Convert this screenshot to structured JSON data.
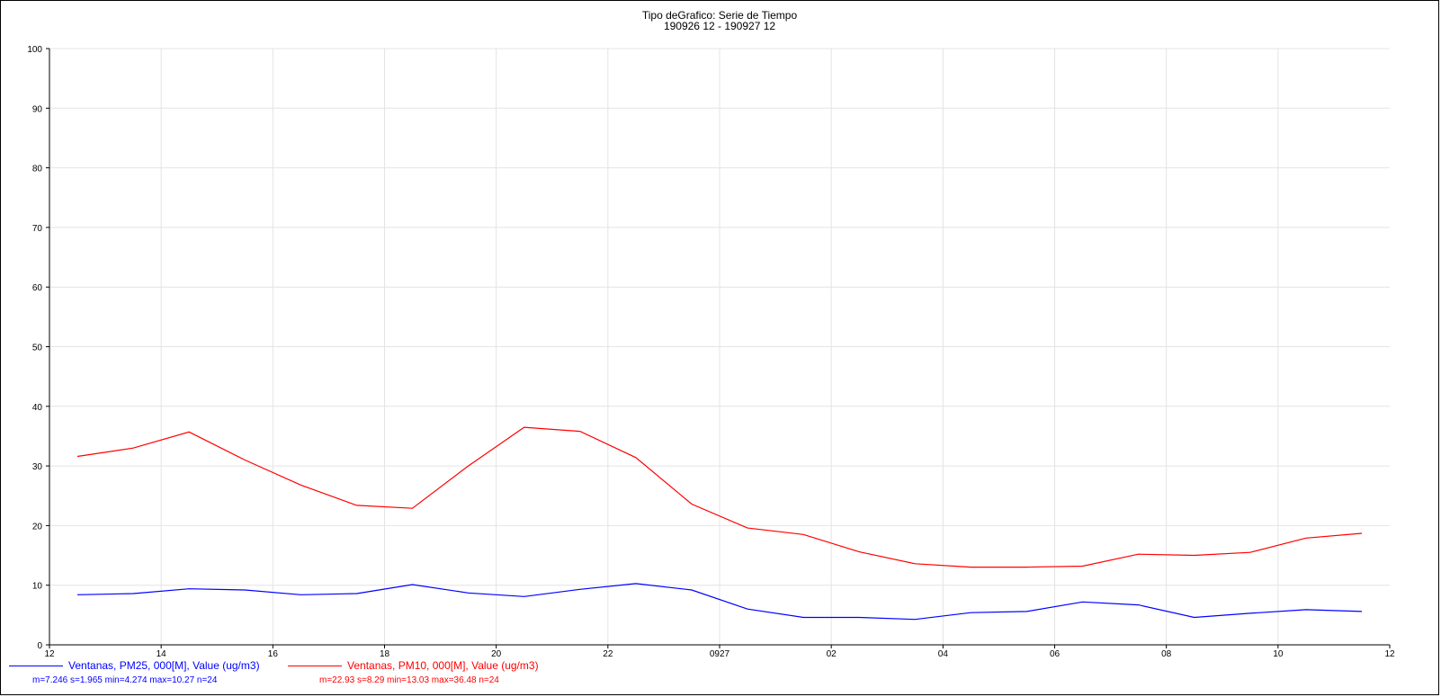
{
  "chart_data": {
    "type": "line",
    "title": "Tipo deGrafico: Serie de Tiempo",
    "subtitle": "190926 12 - 190927 12",
    "xlabel": "",
    "ylabel": "",
    "ylim": [
      0,
      100
    ],
    "xlim": [
      12,
      36
    ],
    "grid": true,
    "legend_position": "bottom-left",
    "y_ticks": [
      "0",
      "10",
      "20",
      "30",
      "40",
      "50",
      "60",
      "70",
      "80",
      "90",
      "100"
    ],
    "x_ticks": [
      {
        "x": 12,
        "label": "12"
      },
      {
        "x": 14,
        "label": "14"
      },
      {
        "x": 16,
        "label": "16"
      },
      {
        "x": 18,
        "label": "18"
      },
      {
        "x": 20,
        "label": "20"
      },
      {
        "x": 22,
        "label": "22"
      },
      {
        "x": 24,
        "label": "0927"
      },
      {
        "x": 26,
        "label": "02"
      },
      {
        "x": 28,
        "label": "04"
      },
      {
        "x": 30,
        "label": "06"
      },
      {
        "x": 32,
        "label": "08"
      },
      {
        "x": 34,
        "label": "10"
      },
      {
        "x": 36,
        "label": "12"
      }
    ],
    "x": [
      12.5,
      13.5,
      14.5,
      15.5,
      16.5,
      17.5,
      18.5,
      19.5,
      20.5,
      21.5,
      22.5,
      23.5,
      24.5,
      25.5,
      26.5,
      27.5,
      28.5,
      29.5,
      30.5,
      31.5,
      32.5,
      33.5,
      34.5,
      35.5
    ],
    "series": [
      {
        "name": "Ventanas, PM25, 000[M], Value (ug/m3)",
        "stats": "m=7.246 s=1.965 min=4.274 max=10.27 n=24",
        "color": "#0000ff",
        "values": [
          8.4,
          8.6,
          9.4,
          9.2,
          8.4,
          8.6,
          10.1,
          8.7,
          8.1,
          9.3,
          10.27,
          9.2,
          6.0,
          4.6,
          4.6,
          4.274,
          5.4,
          5.6,
          7.2,
          6.7,
          4.6,
          5.3,
          5.9,
          5.6
        ]
      },
      {
        "name": "Ventanas, PM10, 000[M], Value (ug/m3)",
        "stats": "m=22.93 s=8.29 min=13.03 max=36.48 n=24",
        "color": "#ff0000",
        "values": [
          31.6,
          33.0,
          35.7,
          31.0,
          26.8,
          23.4,
          22.9,
          30.0,
          36.48,
          35.8,
          31.4,
          23.6,
          19.6,
          18.5,
          15.6,
          13.6,
          13.03,
          13.03,
          13.2,
          15.2,
          15.0,
          15.5,
          17.9,
          18.7
        ]
      }
    ]
  }
}
